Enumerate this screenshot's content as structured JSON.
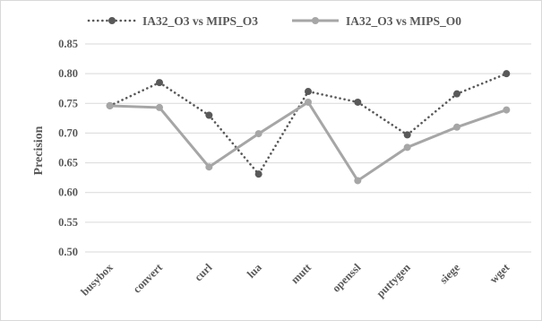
{
  "chart_data": {
    "type": "line",
    "title": "",
    "xlabel": "",
    "ylabel": "Precision",
    "categories": [
      "busybox",
      "convert",
      "curl",
      "lua",
      "mutt",
      "openssl",
      "puttygen",
      "siege",
      "wget"
    ],
    "ylim": [
      0.5,
      0.85
    ],
    "yticks": [
      "0.50",
      "0.55",
      "0.60",
      "0.65",
      "0.70",
      "0.75",
      "0.80",
      "0.85"
    ],
    "grid": true,
    "legend_position": "top",
    "series": [
      {
        "name": "IA32_O3 vs MIPS_O3",
        "color": "#595959",
        "line_style": "dotted",
        "values": [
          0.746,
          0.785,
          0.73,
          0.631,
          0.77,
          0.752,
          0.697,
          0.766,
          0.8
        ]
      },
      {
        "name": "IA32_O3 vs MIPS_O0",
        "color": "#a6a6a6",
        "line_style": "solid",
        "values": [
          0.746,
          0.743,
          0.643,
          0.699,
          0.752,
          0.62,
          0.676,
          0.71,
          0.739
        ]
      }
    ]
  }
}
